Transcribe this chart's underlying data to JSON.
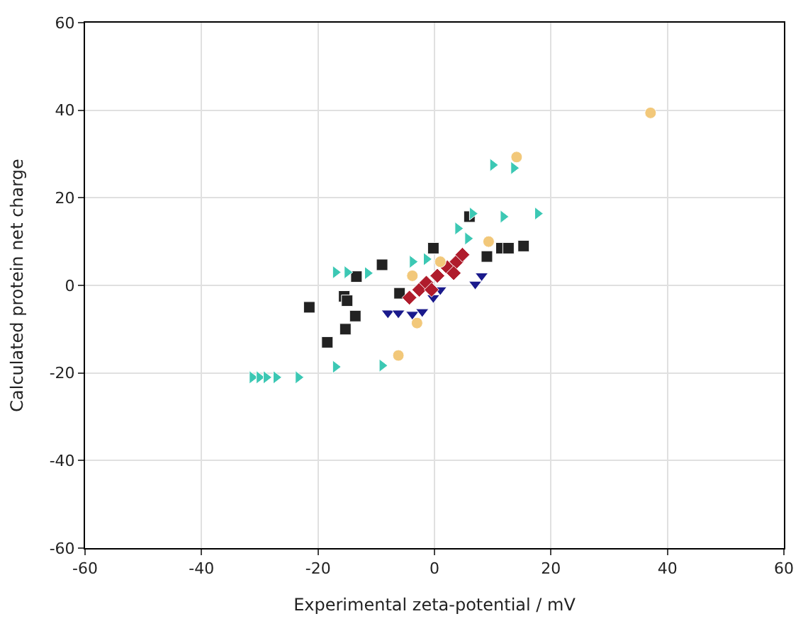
{
  "chart_data": {
    "type": "scatter",
    "xlabel": "Experimental zeta-potential / mV",
    "ylabel": "Calculated protein net charge",
    "xlim": [
      -60,
      60
    ],
    "ylim": [
      -60,
      60
    ],
    "xticks": [
      -60,
      -40,
      -20,
      0,
      20,
      40,
      60
    ],
    "yticks": [
      -60,
      -40,
      -20,
      0,
      20,
      40,
      60
    ],
    "grid": true,
    "legend": false,
    "series": [
      {
        "color": "#222222",
        "marker": "square",
        "x": [
          -21.5,
          -18.4,
          -15.5,
          -15,
          -13.6,
          -15.3,
          -13.4,
          -9,
          -0.2,
          6,
          9,
          11.5,
          12.7,
          15.3,
          -6
        ],
        "values": [
          -5,
          -13,
          -2.5,
          -3.5,
          -7,
          -10,
          2,
          4.7,
          8.5,
          15.7,
          6.6,
          8.5,
          8.5,
          9,
          -1.8
        ]
      },
      {
        "color": "#3cc8b4",
        "marker": "triangle-right",
        "x": [
          -17,
          -15,
          -11.5,
          -3.8,
          -1.4,
          4,
          6.5,
          10,
          13.6,
          17.7,
          11.8,
          5.7,
          -17,
          -9,
          -31.3,
          -30.1,
          -28.9,
          -27.2,
          -23.4
        ],
        "values": [
          3,
          3,
          2.8,
          5.4,
          6,
          13,
          16.4,
          27.5,
          26.8,
          16.4,
          15.7,
          10.7,
          -18.6,
          -18.3,
          -21,
          -21,
          -21,
          -21,
          -21
        ]
      },
      {
        "color": "#1a1a8c",
        "marker": "triangle-down",
        "x": [
          -8,
          -6.2,
          -3.8,
          -2.1,
          -0.2,
          1,
          7,
          8.1
        ],
        "values": [
          -6.3,
          -6.3,
          -6.6,
          -6,
          -2.8,
          -1,
          0.3,
          2.2
        ]
      },
      {
        "color": "#b01c2c",
        "marker": "diamond",
        "x": [
          -4.3,
          -2.6,
          -1.4,
          0.5,
          2.2,
          3.8,
          4.8,
          3.3,
          -0.5
        ],
        "values": [
          -2.8,
          -1,
          0.6,
          2.2,
          4.1,
          5.4,
          7,
          2.8,
          -1
        ]
      },
      {
        "color": "#f2c87a",
        "marker": "circle",
        "x": [
          37.1,
          14.1,
          -6.2,
          -3,
          1,
          9.3,
          -3.8
        ],
        "values": [
          39.4,
          29.3,
          -16,
          -8.6,
          5.4,
          10,
          2.2
        ]
      }
    ]
  }
}
